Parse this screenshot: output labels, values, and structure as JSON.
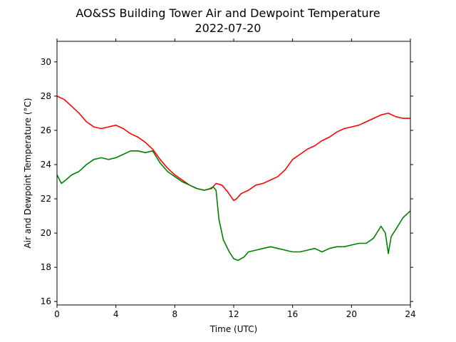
{
  "chart_data": {
    "type": "line",
    "title": "AO&SS Building Tower Air and Dewpoint Temperature",
    "subtitle": "2022-07-20",
    "xlabel": "Time (UTC)",
    "ylabel": "Air and Dewpoint Temperature (°C)",
    "xlim": [
      0,
      24
    ],
    "ylim": [
      15.8,
      31.2
    ],
    "xticks": [
      0,
      4,
      8,
      12,
      16,
      20,
      24
    ],
    "yticks": [
      16,
      18,
      20,
      22,
      24,
      26,
      28,
      30
    ],
    "grid": false,
    "legend": "none",
    "series": [
      {
        "color": "#ff0000",
        "x": [
          0,
          0.5,
          1,
          1.5,
          2,
          2.5,
          3,
          3.5,
          4,
          4.5,
          5,
          5.5,
          6,
          6.5,
          7,
          7.5,
          8,
          8.5,
          9,
          9.5,
          10,
          10.5,
          10.8,
          11.2,
          11.6,
          12,
          12.2,
          12.5,
          13,
          13.5,
          14,
          14.5,
          15,
          15.5,
          16,
          16.5,
          17,
          17.5,
          18,
          18.5,
          19,
          19.5,
          20,
          20.5,
          21,
          21.5,
          22,
          22.5,
          23,
          23.5,
          24
        ],
        "y": [
          28.0,
          27.8,
          27.4,
          27.0,
          26.5,
          26.2,
          26.1,
          26.2,
          26.3,
          26.1,
          25.8,
          25.6,
          25.3,
          24.9,
          24.3,
          23.8,
          23.4,
          23.1,
          22.8,
          22.6,
          22.5,
          22.6,
          22.9,
          22.8,
          22.4,
          21.9,
          22.0,
          22.3,
          22.5,
          22.8,
          22.9,
          23.1,
          23.3,
          23.7,
          24.3,
          24.6,
          24.9,
          25.1,
          25.4,
          25.6,
          25.9,
          26.1,
          26.2,
          26.3,
          26.5,
          26.7,
          26.9,
          27.0,
          26.8,
          26.7,
          26.7
        ]
      },
      {
        "color": "#008000",
        "x": [
          0,
          0.3,
          0.6,
          1,
          1.5,
          2,
          2.5,
          3,
          3.5,
          4,
          4.5,
          5,
          5.5,
          6,
          6.5,
          7,
          7.5,
          8,
          8.5,
          9,
          9.5,
          10,
          10.4,
          10.6,
          10.8,
          11,
          11.3,
          11.7,
          12,
          12.3,
          12.7,
          13,
          13.5,
          14,
          14.5,
          15,
          15.5,
          16,
          16.5,
          17,
          17.5,
          18,
          18.5,
          19,
          19.5,
          20,
          20.5,
          21,
          21.5,
          22,
          22.3,
          22.5,
          22.7,
          23,
          23.5,
          24
        ],
        "y": [
          23.4,
          22.9,
          23.1,
          23.4,
          23.6,
          24.0,
          24.3,
          24.4,
          24.3,
          24.4,
          24.6,
          24.8,
          24.8,
          24.7,
          24.8,
          24.1,
          23.6,
          23.3,
          23.0,
          22.8,
          22.6,
          22.5,
          22.6,
          22.7,
          22.5,
          20.8,
          19.6,
          18.9,
          18.5,
          18.4,
          18.6,
          18.9,
          19.0,
          19.1,
          19.2,
          19.1,
          19.0,
          18.9,
          18.9,
          19.0,
          19.1,
          18.9,
          19.1,
          19.2,
          19.2,
          19.3,
          19.4,
          19.4,
          19.7,
          20.4,
          20.0,
          18.8,
          19.8,
          20.2,
          20.9,
          21.3
        ]
      }
    ]
  }
}
